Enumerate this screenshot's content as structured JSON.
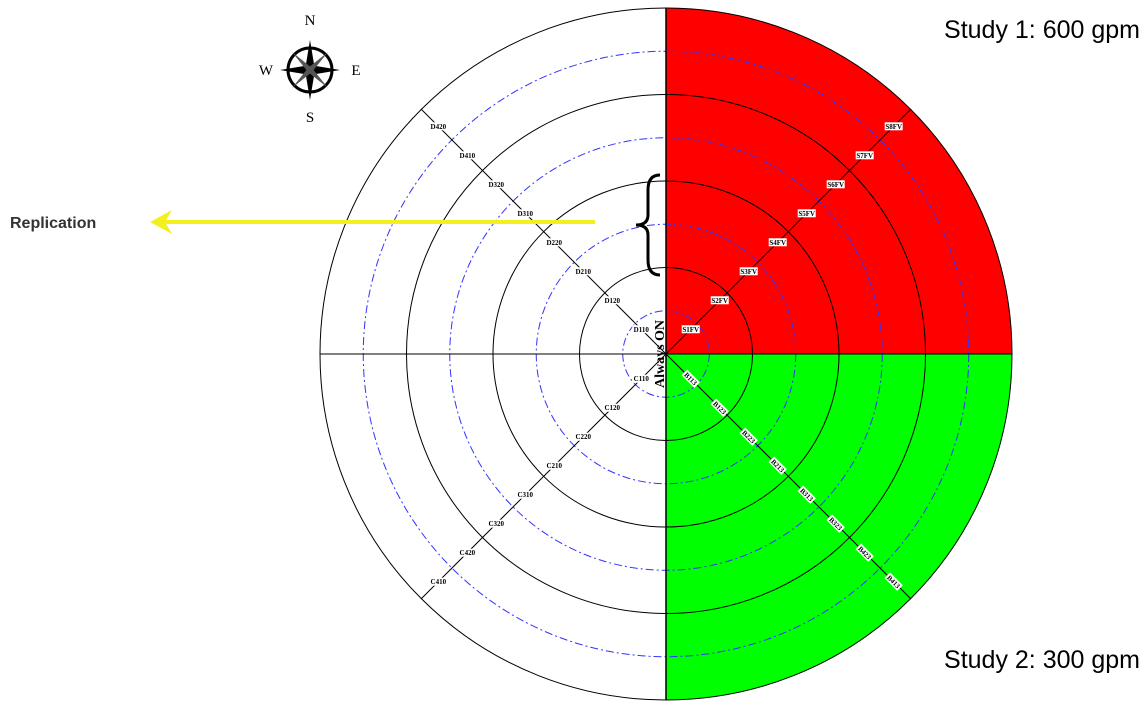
{
  "compass": {
    "north": "N",
    "south": "S",
    "east": "E",
    "west": "W"
  },
  "annotation": "Replication",
  "center_label": "Always ON",
  "studies": {
    "top": "Study 1: 600 gpm",
    "bottom": "Study 2: 300 gpm"
  },
  "spokes": {
    "northwest": [
      "D110",
      "D120",
      "D210",
      "D220",
      "D310",
      "D320",
      "D410",
      "D420"
    ],
    "southwest": [
      "C110",
      "C120",
      "C220",
      "C210",
      "C310",
      "C320",
      "C420",
      "C410"
    ],
    "northeast": [
      "S1FV",
      "S2FV",
      "S3FV",
      "S4FV",
      "S5FV",
      "S6FV",
      "S7FV",
      "S8FV"
    ],
    "southeast": [
      "B113",
      "B123",
      "B223",
      "B213",
      "B313",
      "B323",
      "B423",
      "B413"
    ]
  }
}
